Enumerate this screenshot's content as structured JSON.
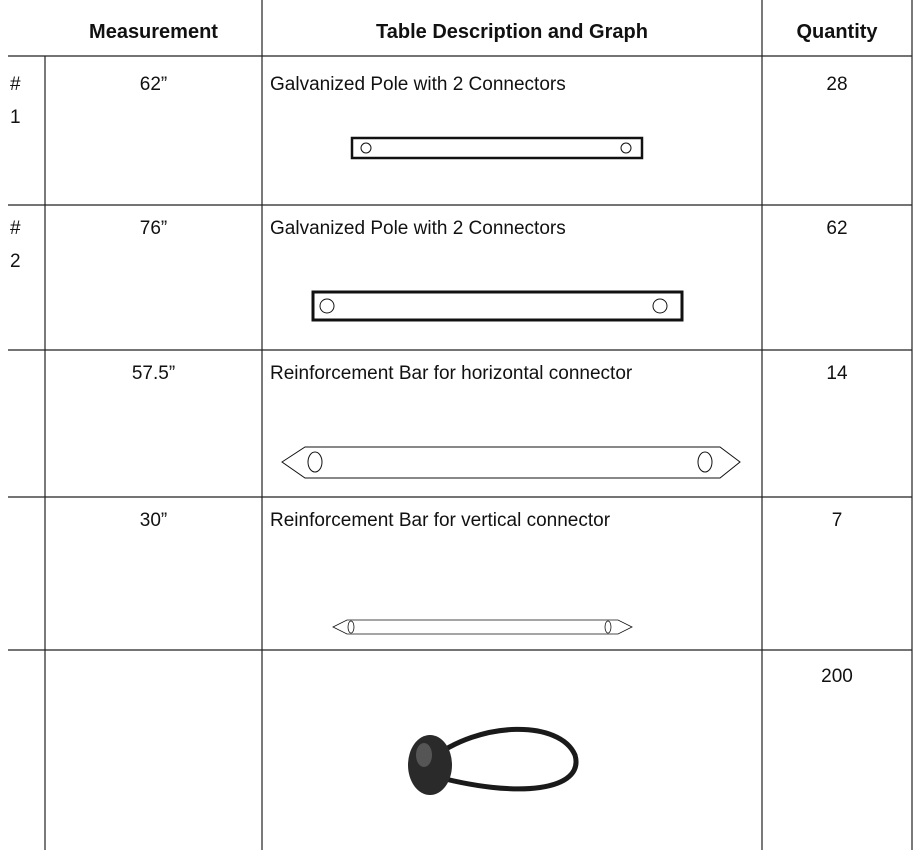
{
  "header": [
    "Measurement",
    "Table Description and Graph",
    "Quantity"
  ],
  "rows": [
    {
      "number": "# 1",
      "measurement": "62”",
      "description": "Galvanized Pole with 2 Connectors",
      "quantity": "28"
    },
    {
      "number": "# 2",
      "measurement": "76”",
      "description": "Galvanized Pole with 2 Connectors",
      "quantity": "62"
    },
    {
      "measurement": "57.5”",
      "description": "Reinforcement Bar for horizontal connector",
      "quantity": "14"
    },
    {
      "measurement": "30”",
      "description": "Reinforcement Bar for vertical connector",
      "quantity": "7"
    },
    {
      "quantity": "200"
    }
  ]
}
